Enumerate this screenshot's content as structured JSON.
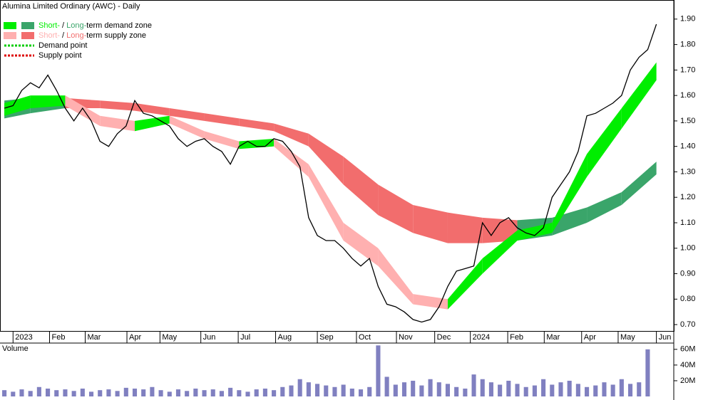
{
  "chart_data": {
    "type": "line",
    "title": "Alumina Limited Ordinary (AWC) - Daily",
    "legend": [
      {
        "parts": [
          "Short-",
          " / ",
          "Long-",
          "term demand zone"
        ],
        "colors": [
          "#00ee00",
          "#3aa56a"
        ]
      },
      {
        "parts": [
          "Short-",
          " / ",
          "Long-",
          "term supply zone"
        ],
        "colors": [
          "#ffb0b0",
          "#f26d6d"
        ]
      },
      {
        "parts": [
          "Demand point"
        ],
        "colors": [
          "#00cc00"
        ]
      },
      {
        "parts": [
          "Supply point"
        ],
        "colors": [
          "#dd0000"
        ]
      }
    ],
    "x": [
      -1,
      0,
      1,
      2,
      3,
      4,
      5,
      6,
      7,
      8,
      9,
      10,
      11,
      12,
      13,
      14,
      15,
      16,
      17,
      18,
      19,
      20,
      21,
      22,
      23,
      24,
      25,
      26,
      27,
      28,
      29,
      30,
      31,
      32,
      33,
      34,
      35,
      36,
      37,
      38,
      39,
      40,
      41,
      42,
      43,
      44,
      45,
      46,
      47,
      48,
      49,
      50,
      51,
      52,
      53,
      54,
      55,
      56,
      57,
      58,
      59,
      60,
      61,
      62,
      63,
      64,
      65,
      66,
      67,
      68,
      69,
      70,
      71,
      72,
      73,
      74
    ],
    "series": [
      {
        "name": "Close",
        "color": "#000000",
        "values": [
          1.55,
          1.56,
          1.62,
          1.65,
          1.63,
          1.68,
          1.62,
          1.55,
          1.5,
          1.55,
          1.5,
          1.42,
          1.4,
          1.45,
          1.48,
          1.58,
          1.53,
          1.52,
          1.5,
          1.48,
          1.43,
          1.4,
          1.42,
          1.43,
          1.4,
          1.38,
          1.33,
          1.4,
          1.42,
          1.4,
          1.4,
          1.43,
          1.42,
          1.38,
          1.32,
          1.12,
          1.05,
          1.03,
          1.03,
          1.0,
          0.96,
          0.93,
          0.96,
          0.85,
          0.78,
          0.77,
          0.75,
          0.72,
          0.71,
          0.72,
          0.77,
          0.85,
          0.91,
          0.92,
          0.93,
          1.1,
          1.05,
          1.1,
          1.12,
          1.08,
          1.06,
          1.05,
          1.08,
          1.2,
          1.25,
          1.3,
          1.38,
          1.52,
          1.53,
          1.55,
          1.57,
          1.6,
          1.7,
          1.75,
          1.78,
          1.88
        ]
      }
    ],
    "zone_x": [
      -1,
      2,
      6,
      10,
      14,
      18,
      22,
      26,
      30,
      34,
      38,
      42,
      46,
      50,
      54,
      58,
      62,
      66,
      70,
      74
    ],
    "short_zone": {
      "upper": [
        1.57,
        1.6,
        1.6,
        1.52,
        1.5,
        1.52,
        1.46,
        1.42,
        1.43,
        1.33,
        1.1,
        1.0,
        0.82,
        0.8,
        0.96,
        1.07,
        1.1,
        1.37,
        1.55,
        1.73
      ],
      "lower": [
        1.52,
        1.55,
        1.56,
        1.48,
        1.46,
        1.49,
        1.43,
        1.39,
        1.4,
        1.28,
        1.03,
        0.93,
        0.78,
        0.76,
        0.9,
        1.03,
        1.06,
        1.28,
        1.47,
        1.66
      ]
    },
    "long_zone": {
      "upper": [
        1.58,
        1.59,
        1.59,
        1.58,
        1.57,
        1.55,
        1.53,
        1.51,
        1.49,
        1.45,
        1.36,
        1.25,
        1.17,
        1.14,
        1.12,
        1.11,
        1.12,
        1.16,
        1.22,
        1.34
      ],
      "lower": [
        1.51,
        1.53,
        1.55,
        1.55,
        1.54,
        1.52,
        1.5,
        1.48,
        1.46,
        1.4,
        1.25,
        1.13,
        1.06,
        1.02,
        1.02,
        1.03,
        1.05,
        1.1,
        1.17,
        1.29
      ]
    },
    "xlim": [
      -1.5,
      76
    ],
    "xticks": [
      {
        "value": 0,
        "label": "2023"
      },
      {
        "value": 4.2,
        "label": "Feb"
      },
      {
        "value": 8.3,
        "label": "Mar"
      },
      {
        "value": 13.1,
        "label": "Apr"
      },
      {
        "value": 16.9,
        "label": "May"
      },
      {
        "value": 21.6,
        "label": "Jun"
      },
      {
        "value": 25.9,
        "label": "Jul"
      },
      {
        "value": 30.2,
        "label": "Aug"
      },
      {
        "value": 35,
        "label": "Sep"
      },
      {
        "value": 39.5,
        "label": "Oct"
      },
      {
        "value": 44.1,
        "label": "Nov"
      },
      {
        "value": 48.5,
        "label": "Dec"
      },
      {
        "value": 52.6,
        "label": "2024"
      },
      {
        "value": 56.9,
        "label": "Feb"
      },
      {
        "value": 61.1,
        "label": "Mar"
      },
      {
        "value": 65.4,
        "label": "Apr"
      },
      {
        "value": 69.6,
        "label": "May"
      },
      {
        "value": 74,
        "label": "Jun"
      }
    ],
    "ylim": [
      0.675,
      1.975
    ],
    "yticks": [
      {
        "value": 0.7,
        "label": "0.70"
      },
      {
        "value": 0.8,
        "label": "0.80"
      },
      {
        "value": 0.9,
        "label": "0.90"
      },
      {
        "value": 1.0,
        "label": "1.00"
      },
      {
        "value": 1.1,
        "label": "1.10"
      },
      {
        "value": 1.2,
        "label": "1.20"
      },
      {
        "value": 1.3,
        "label": "1.30"
      },
      {
        "value": 1.4,
        "label": "1.40"
      },
      {
        "value": 1.5,
        "label": "1.50"
      },
      {
        "value": 1.6,
        "label": "1.60"
      },
      {
        "value": 1.7,
        "label": "1.70"
      },
      {
        "value": 1.8,
        "label": "1.80"
      },
      {
        "value": 1.9,
        "label": "1.90"
      }
    ],
    "volume": {
      "title": "Volume",
      "color": "#8080c0",
      "values": [
        8,
        6,
        9,
        7,
        12,
        10,
        8,
        9,
        7,
        10,
        6,
        8,
        9,
        7,
        11,
        10,
        9,
        12,
        8,
        6,
        9,
        7,
        10,
        8,
        9,
        7,
        11,
        8,
        6,
        9,
        10,
        8,
        12,
        14,
        22,
        18,
        16,
        14,
        12,
        15,
        10,
        9,
        12,
        65,
        25,
        15,
        18,
        20,
        14,
        22,
        18,
        16,
        12,
        10,
        28,
        22,
        18,
        15,
        20,
        16,
        12,
        14,
        22,
        15,
        18,
        20,
        16,
        12,
        14,
        18,
        15,
        22,
        16,
        18,
        60
      ],
      "ylim": [
        0,
        68
      ],
      "yticks": [
        {
          "value": 20,
          "label": "20M"
        },
        {
          "value": 40,
          "label": "40M"
        },
        {
          "value": 60,
          "label": "60M"
        }
      ]
    }
  }
}
